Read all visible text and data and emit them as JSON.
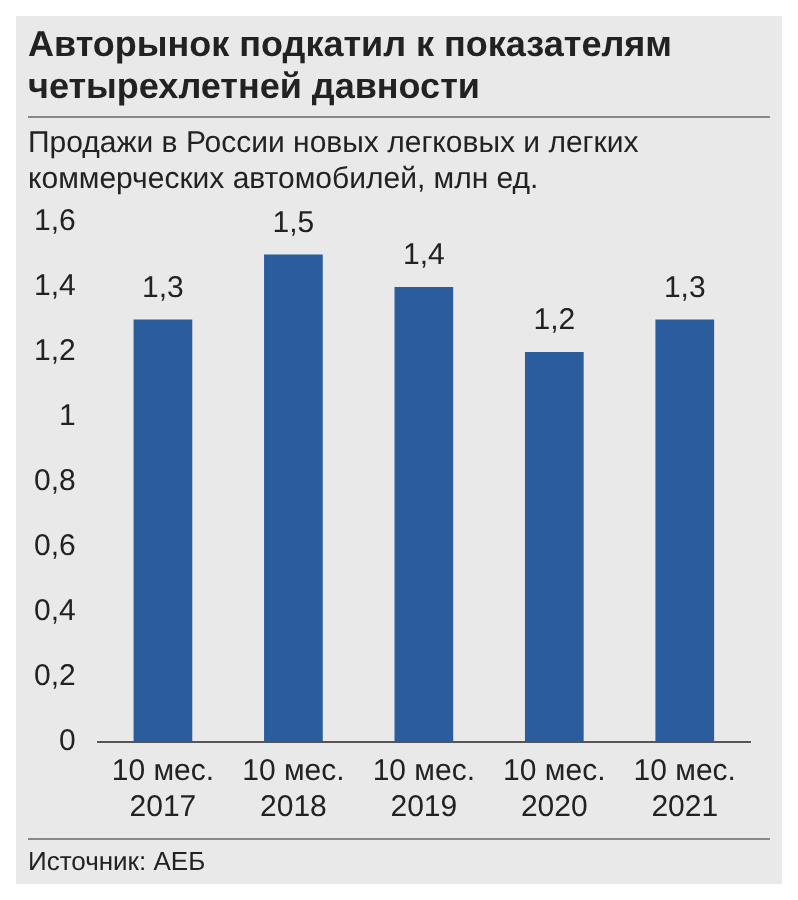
{
  "chart_data": {
    "type": "bar",
    "title": "Авторынок подкатил к показателям четырехлетней давности",
    "subtitle": "Продажи в России новых легковых и легких коммерческих автомобилей, млн ед.",
    "categories": [
      "10 мес. 2017",
      "10 мес. 2018",
      "10 мес. 2019",
      "10 мес. 2020",
      "10 мес. 2021"
    ],
    "values": [
      1.3,
      1.5,
      1.4,
      1.2,
      1.3
    ],
    "value_labels": [
      "1,3",
      "1,5",
      "1,4",
      "1,2",
      "1,3"
    ],
    "color": "#2b5c9c",
    "ylim": [
      0,
      1.6
    ],
    "yticks": [
      0,
      {
        "value": 0.2,
        "label": "0,2"
      },
      {
        "value": 0.4,
        "label": "0,4"
      },
      {
        "value": 0.6,
        "label": "0,6"
      },
      {
        "value": 0.8,
        "label": "0,8"
      },
      1,
      {
        "value": 1.2,
        "label": "1,2"
      },
      {
        "value": 1.4,
        "label": "1,4"
      },
      {
        "value": 1.6,
        "label": "1,6"
      }
    ],
    "grid": false,
    "annotations": [
      "Источник: АЕБ"
    ]
  }
}
